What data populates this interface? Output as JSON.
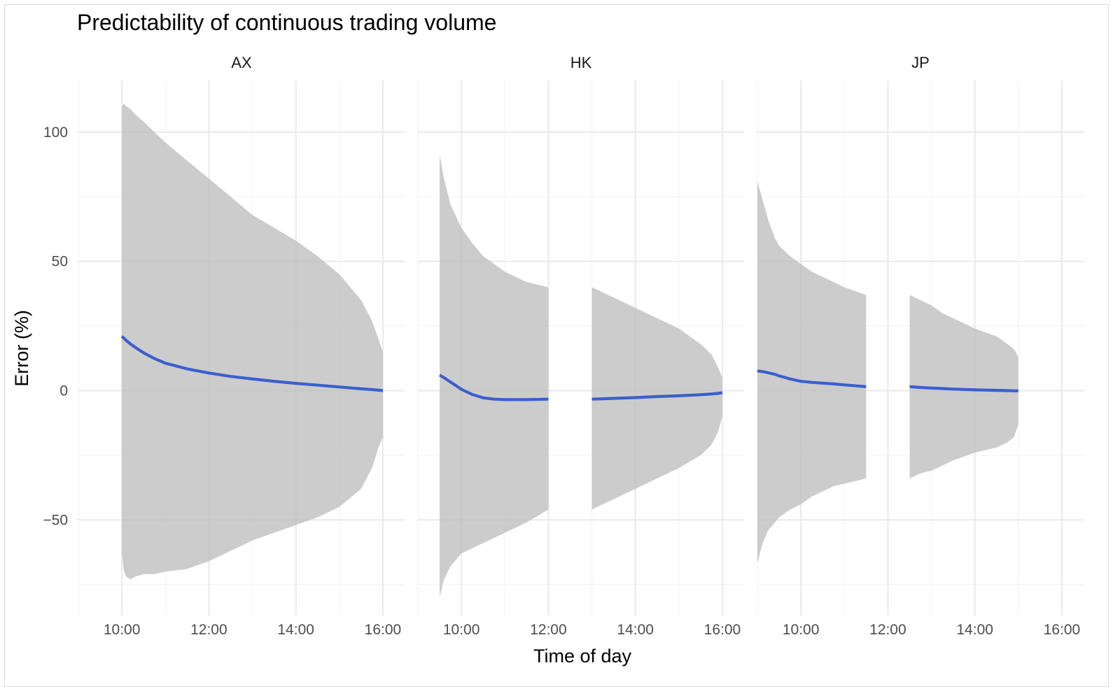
{
  "chart_data": {
    "type": "area",
    "title": "Predictability of continuous trading volume",
    "xlabel": "Time of day",
    "ylabel": "Error (%)",
    "x_ticks": [
      "10:00",
      "12:00",
      "14:00",
      "16:00"
    ],
    "x_tick_hours": [
      10,
      12,
      14,
      16
    ],
    "xlim_hours": [
      9,
      16.5
    ],
    "y_ticks": [
      -50,
      0,
      50,
      100
    ],
    "y_tick_labels": [
      "−50",
      "0",
      "50",
      "100"
    ],
    "ylim": [
      -87,
      120
    ],
    "grid": true,
    "legend": "none",
    "colors": {
      "line": "#3a5fcd",
      "ribbon": "#bfbfbf"
    },
    "panels": [
      {
        "name": "AX",
        "segments": [
          {
            "hours": [
              10.0,
              10.05,
              10.1,
              10.2,
              10.3,
              10.5,
              10.75,
              11.0,
              11.5,
              12.0,
              12.5,
              13.0,
              13.5,
              14.0,
              14.5,
              15.0,
              15.5,
              15.75,
              15.9,
              16.0
            ],
            "upper": [
              110,
              111,
              110,
              109,
              107,
              104,
              100,
              96,
              89,
              82,
              75,
              68,
              63,
              58,
              52,
              45,
              35,
              27,
              20,
              15
            ],
            "lower": [
              -63,
              -70,
              -72,
              -73,
              -72,
              -71,
              -71,
              -70,
              -69,
              -66,
              -62,
              -58,
              -55,
              -52,
              -49,
              -45,
              -38,
              -30,
              -22,
              -18
            ],
            "mean": [
              21,
              20.2,
              19.4,
              18,
              16.8,
              14.6,
              12.4,
              10.6,
              8.4,
              6.8,
              5.5,
              4.5,
              3.6,
              2.8,
              2.1,
              1.4,
              0.7,
              0.4,
              0.15,
              0
            ]
          }
        ]
      },
      {
        "name": "HK",
        "segments": [
          {
            "hours": [
              9.5,
              9.6,
              9.75,
              10.0,
              10.25,
              10.5,
              10.75,
              11.0,
              11.5,
              12.0
            ],
            "upper": [
              91,
              82,
              72,
              63,
              57,
              52,
              49,
              46,
              42,
              40
            ],
            "lower": [
              -80,
              -73,
              -68,
              -63,
              -61,
              -59,
              -57,
              -55,
              -51,
              -46
            ],
            "mean": [
              6,
              5,
              3.3,
              0.5,
              -1.5,
              -2.8,
              -3.3,
              -3.5,
              -3.5,
              -3.3
            ]
          },
          {
            "hours": [
              13.0,
              13.5,
              14.0,
              14.5,
              15.0,
              15.5,
              15.75,
              15.9,
              16.0
            ],
            "upper": [
              40,
              36,
              32,
              28,
              24,
              18,
              14,
              9,
              5
            ],
            "lower": [
              -46,
              -42,
              -38,
              -34,
              -30,
              -25,
              -21,
              -16,
              -10
            ],
            "mean": [
              -3.3,
              -3.0,
              -2.7,
              -2.3,
              -2.0,
              -1.6,
              -1.3,
              -1.1,
              -0.8
            ]
          }
        ]
      },
      {
        "name": "JP",
        "segments": [
          {
            "hours": [
              9.0,
              9.1,
              9.25,
              9.4,
              9.5,
              9.75,
              10.0,
              10.25,
              10.5,
              10.75,
              11.0,
              11.5
            ],
            "upper": [
              81,
              75,
              66,
              59,
              56,
              52,
              49,
              46,
              44,
              42,
              40,
              37
            ],
            "lower": [
              -67,
              -60,
              -54,
              -51,
              -49,
              -46,
              -44,
              -41,
              -39,
              -37,
              -36,
              -34
            ],
            "mean": [
              7.6,
              7.4,
              6.9,
              6.3,
              5.7,
              4.5,
              3.6,
              3.2,
              2.9,
              2.6,
              2.2,
              1.5
            ]
          },
          {
            "hours": [
              12.5,
              12.75,
              13.0,
              13.25,
              13.5,
              14.0,
              14.5,
              14.75,
              14.9,
              15.0
            ],
            "upper": [
              37,
              35,
              33,
              30,
              28,
              24,
              21,
              18,
              16,
              13
            ],
            "lower": [
              -34,
              -32,
              -31,
              -29,
              -27,
              -24,
              -22,
              -20,
              -18,
              -13
            ],
            "mean": [
              1.5,
              1.2,
              1.0,
              0.8,
              0.6,
              0.3,
              0.1,
              0.0,
              -0.1,
              -0.1
            ]
          }
        ]
      }
    ]
  }
}
